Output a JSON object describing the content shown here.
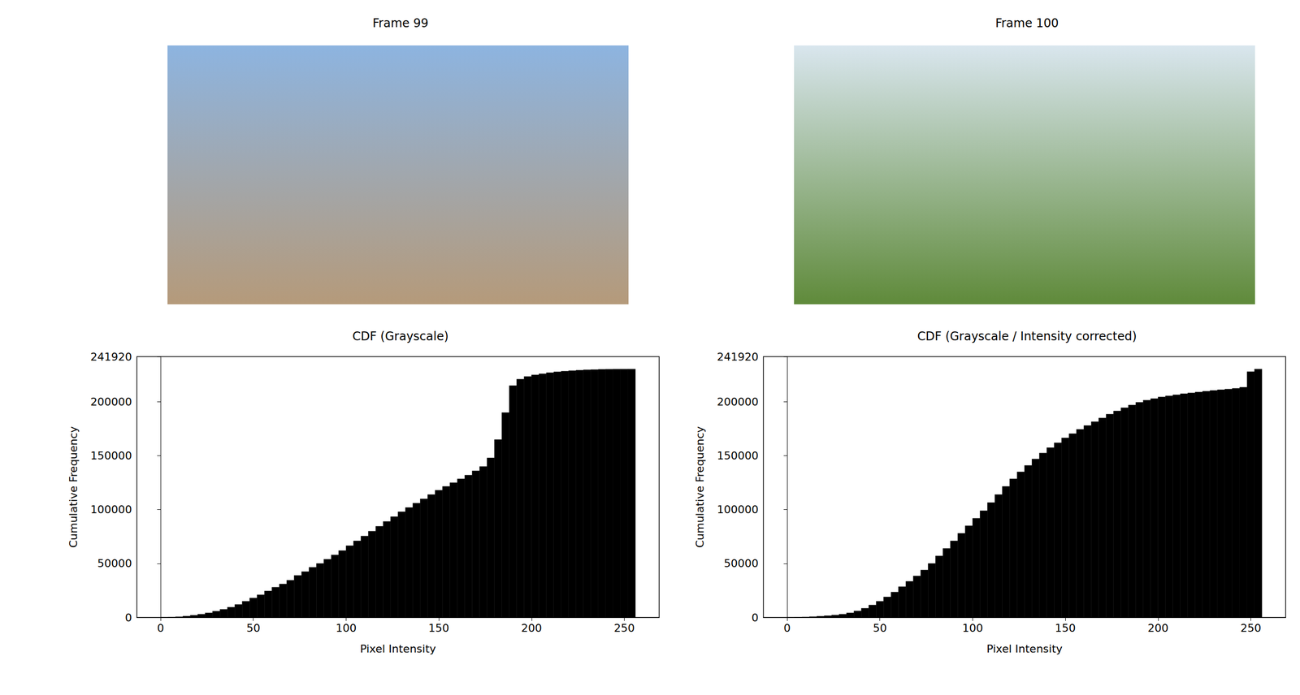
{
  "images": [
    {
      "title": "Frame 99"
    },
    {
      "title": "Frame 100"
    }
  ],
  "chart_data": [
    {
      "type": "histogram",
      "title": "CDF (Grayscale)",
      "x_label": "Pixel Intensity",
      "y_label": "Cumulative Frequency",
      "color": "#000000",
      "bins": [
        0,
        4,
        8,
        12,
        16,
        20,
        24,
        28,
        32,
        36,
        40,
        44,
        48,
        52,
        56,
        60,
        64,
        68,
        72,
        76,
        80,
        84,
        88,
        92,
        96,
        100,
        104,
        108,
        112,
        116,
        120,
        124,
        128,
        132,
        136,
        140,
        144,
        148,
        152,
        156,
        160,
        164,
        168,
        172,
        176,
        180,
        184,
        188,
        192,
        196,
        200,
        204,
        208,
        212,
        216,
        220,
        224,
        228,
        232,
        236,
        240,
        244,
        248,
        252,
        256
      ],
      "values": [
        100,
        300,
        600,
        1200,
        2000,
        3000,
        4200,
        5800,
        7500,
        9500,
        12000,
        15000,
        18000,
        21000,
        24500,
        28000,
        31000,
        34500,
        39000,
        42500,
        46500,
        50000,
        54000,
        58000,
        62000,
        66500,
        71000,
        75500,
        80000,
        84500,
        89000,
        93500,
        98000,
        102000,
        106000,
        110000,
        114000,
        118000,
        121500,
        125000,
        128500,
        132000,
        136000,
        140000,
        148000,
        165000,
        190000,
        215000,
        221000,
        223500,
        225000,
        226000,
        227000,
        227800,
        228400,
        228900,
        229300,
        229700,
        229900,
        230100,
        230200,
        230300,
        230350,
        230400
      ],
      "xlim": [
        -12.8,
        268.8
      ],
      "ylim": [
        0,
        241920
      ],
      "xticks": [
        0,
        50,
        100,
        150,
        200,
        250
      ],
      "yticks": [
        0,
        50000,
        100000,
        150000,
        200000
      ],
      "grid": false
    },
    {
      "type": "histogram",
      "title": "CDF (Grayscale / Intensity corrected)",
      "x_label": "Pixel Intensity",
      "y_label": "Cumulative Frequency",
      "color": "#000000",
      "bins": [
        0,
        4,
        8,
        12,
        16,
        20,
        24,
        28,
        32,
        36,
        40,
        44,
        48,
        52,
        56,
        60,
        64,
        68,
        72,
        76,
        80,
        84,
        88,
        92,
        96,
        100,
        104,
        108,
        112,
        116,
        120,
        124,
        128,
        132,
        136,
        140,
        144,
        148,
        152,
        156,
        160,
        164,
        168,
        172,
        176,
        180,
        184,
        188,
        192,
        196,
        200,
        204,
        208,
        212,
        216,
        220,
        224,
        228,
        232,
        236,
        240,
        244,
        248,
        252,
        256
      ],
      "values": [
        50,
        200,
        400,
        700,
        1100,
        1600,
        2200,
        3000,
        4200,
        6000,
        8500,
        11500,
        15000,
        19000,
        23500,
        28500,
        33500,
        38500,
        44000,
        50000,
        57000,
        64000,
        71000,
        78000,
        85000,
        92000,
        99000,
        106500,
        114000,
        121500,
        128500,
        135000,
        141000,
        147000,
        152500,
        157500,
        162000,
        166500,
        170500,
        174500,
        178000,
        181500,
        185000,
        188500,
        191500,
        194500,
        197000,
        199500,
        201500,
        203000,
        204500,
        205500,
        206500,
        207500,
        208300,
        209000,
        209800,
        210500,
        211200,
        211800,
        212500,
        213500,
        228000,
        230400
      ],
      "xlim": [
        -12.8,
        268.8
      ],
      "ylim": [
        0,
        241920
      ],
      "xticks": [
        0,
        50,
        100,
        150,
        200,
        250
      ],
      "yticks": [
        0,
        50000,
        100000,
        150000,
        200000
      ],
      "grid": false
    }
  ]
}
